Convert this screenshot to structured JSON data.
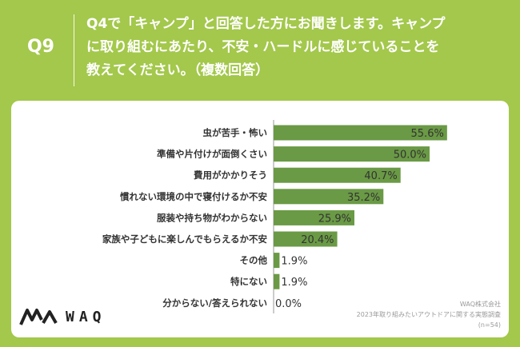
{
  "header": {
    "qnum": "Q9",
    "line1": "Q4で「キャンプ」と回答した方にお聞きします。キャンプ",
    "line2": "に取り組むにあたり、不安・ハードルに感じていることを",
    "line3": "教えてください。（複数回答）"
  },
  "chart_data": {
    "type": "bar",
    "orientation": "horizontal",
    "categories": [
      "虫が苦手・怖い",
      "準備や片付けが面倒くさい",
      "費用がかかりそう",
      "慣れない環境の中で寝付けるか不安",
      "服装や持ち物がわからない",
      "家族や子どもに楽しんでもらえるか不安",
      "その他",
      "特にない",
      "分からない/答えられない"
    ],
    "values": [
      55.6,
      50.0,
      40.7,
      35.2,
      25.9,
      20.4,
      1.9,
      1.9,
      0.0
    ],
    "value_labels": [
      "55.6%",
      "50.0%",
      "40.7%",
      "35.2%",
      "25.9%",
      "20.4%",
      "1.9%",
      "1.9%",
      "0.0%"
    ],
    "xlim": [
      0,
      100
    ],
    "bar_color": "#6a9a45"
  },
  "logo": {
    "text": "WAQ"
  },
  "footer": {
    "company": "WAQ株式会社",
    "survey": "2023年取り組みたいアウトドアに関する実態調査",
    "sample": "(n=54)"
  }
}
